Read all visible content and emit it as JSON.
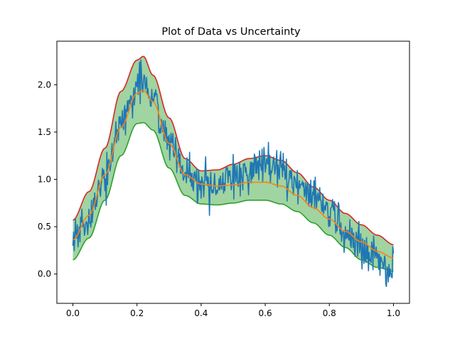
{
  "chart_data": {
    "type": "line",
    "title": "Plot of Data vs  Uncertainty",
    "xlabel": "",
    "ylabel": "",
    "xlim": [
      -0.05,
      1.05
    ],
    "ylim": [
      -0.31,
      2.46
    ],
    "x_ticks": [
      0.0,
      0.2,
      0.4,
      0.6,
      0.8,
      1.0
    ],
    "x_tick_labels": [
      "0.0",
      "0.2",
      "0.4",
      "0.6",
      "0.8",
      "1.0"
    ],
    "y_ticks": [
      0.0,
      0.5,
      1.0,
      1.5,
      2.0
    ],
    "y_tick_labels": [
      "0.0",
      "0.5",
      "1.0",
      "1.5",
      "2.0"
    ],
    "grid": false,
    "legend": "none",
    "x": [
      0.0,
      0.05,
      0.1,
      0.15,
      0.2,
      0.22,
      0.25,
      0.3,
      0.35,
      0.4,
      0.45,
      0.5,
      0.55,
      0.6,
      0.65,
      0.7,
      0.75,
      0.8,
      0.85,
      0.9,
      0.95,
      1.0
    ],
    "series": [
      {
        "color": "#d62728",
        "values": [
          0.57,
          0.87,
          1.33,
          1.93,
          2.26,
          2.3,
          2.1,
          1.65,
          1.22,
          1.09,
          1.1,
          1.16,
          1.22,
          1.25,
          1.2,
          1.07,
          0.92,
          0.78,
          0.64,
          0.52,
          0.41,
          0.31
        ]
      },
      {
        "color": "#ff7f0e",
        "values": [
          0.36,
          0.62,
          1.05,
          1.55,
          1.91,
          1.94,
          1.82,
          1.38,
          1.05,
          0.95,
          0.93,
          0.94,
          0.97,
          0.97,
          0.93,
          0.83,
          0.7,
          0.58,
          0.45,
          0.34,
          0.24,
          0.17
        ]
      },
      {
        "color": "#2ca02c",
        "values": [
          0.15,
          0.38,
          0.78,
          1.25,
          1.59,
          1.6,
          1.52,
          1.12,
          0.83,
          0.74,
          0.73,
          0.75,
          0.78,
          0.78,
          0.74,
          0.66,
          0.54,
          0.41,
          0.28,
          0.15,
          0.07,
          0.03
        ]
      },
      {
        "color": "#1f77b4",
        "noise": 0.17,
        "values": [
          0.33,
          0.6,
          1.05,
          1.6,
          1.97,
          2.05,
          1.87,
          1.4,
          1.07,
          0.9,
          0.92,
          1.0,
          1.1,
          1.2,
          1.12,
          0.95,
          0.8,
          0.65,
          0.45,
          0.32,
          0.14,
          0.05
        ]
      }
    ],
    "band": {
      "color": "#2ca02c",
      "fill_opacity": 0.45,
      "from_series": 2,
      "to_series": 0
    }
  }
}
